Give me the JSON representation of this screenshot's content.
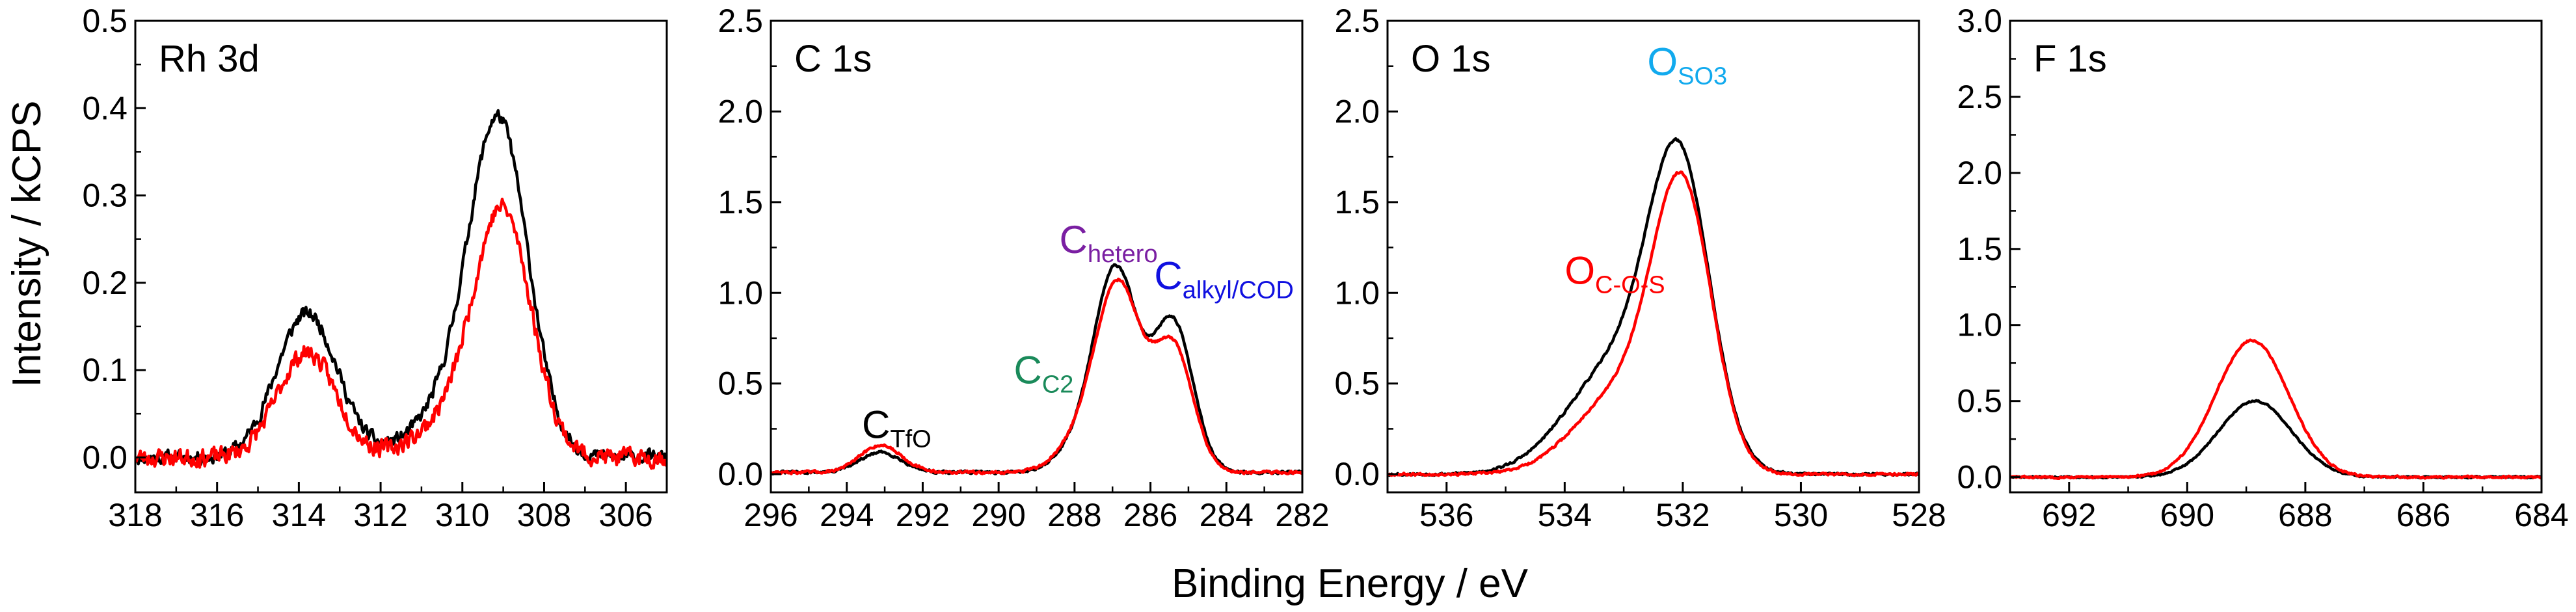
{
  "chart_data": {
    "type": "line",
    "xlabel": "Binding Energy / eV",
    "ylabel": "Intensity / kCPS",
    "series_colors": {
      "black": "#000000",
      "red": "#ff0000"
    },
    "panels": [
      {
        "title": "Rh 3d",
        "xlim": [
          318,
          305
        ],
        "ylim": [
          -0.04,
          0.5
        ],
        "xticks": [
          318,
          316,
          314,
          312,
          310,
          308,
          306
        ],
        "xtick_labels": [
          "318",
          "316",
          "314",
          "312",
          "310",
          "308",
          "306"
        ],
        "yticks": [
          0,
          0.1,
          0.2,
          0.3,
          0.4,
          0.5
        ],
        "ytick_labels": [
          "0.0",
          "0.1",
          "0.2",
          "0.3",
          "0.4",
          "0.5"
        ],
        "annotations": [],
        "series": [
          {
            "name": "black",
            "color": "#000000",
            "peaks": [
              {
                "c": 313.8,
                "a": 0.165,
                "w": 0.75
              },
              {
                "c": 309.1,
                "a": 0.37,
                "w": 0.72
              },
              {
                "c": 310.3,
                "a": 0.05,
                "w": 0.9
              }
            ],
            "baseline": 0.0,
            "noise": 0.012,
            "seed": 11
          },
          {
            "name": "red",
            "color": "#ff0000",
            "peaks": [
              {
                "c": 313.8,
                "a": 0.12,
                "w": 0.72
              },
              {
                "c": 309.0,
                "a": 0.27,
                "w": 0.7
              },
              {
                "c": 310.2,
                "a": 0.04,
                "w": 0.9
              }
            ],
            "baseline": 0.0,
            "noise": 0.016,
            "seed": 23
          }
        ]
      },
      {
        "title": "C 1s",
        "xlim": [
          296,
          282
        ],
        "ylim": [
          -0.1,
          2.5
        ],
        "xticks": [
          296,
          294,
          292,
          290,
          288,
          286,
          284,
          282
        ],
        "xtick_labels": [
          "296",
          "294",
          "292",
          "290",
          "288",
          "286",
          "284",
          "282"
        ],
        "yticks": [
          0,
          0.5,
          1.0,
          1.5,
          2.0,
          2.5
        ],
        "ytick_labels": [
          "0.0",
          "0.5",
          "1.0",
          "1.5",
          "2.0",
          "2.5"
        ],
        "annotations": [
          {
            "main": "C",
            "sub": "TfO",
            "color": "#000000",
            "x": 293.6,
            "y": 0.2
          },
          {
            "main": "C",
            "sub": "C2",
            "color": "#1a8a5a",
            "x": 289.6,
            "y": 0.5
          },
          {
            "main": "C",
            "sub": "hetero",
            "color": "#7a1fa2",
            "x": 288.4,
            "y": 1.22
          },
          {
            "main": "C",
            "sub": "alkyl/COD",
            "color": "#1010e0",
            "x": 285.9,
            "y": 1.02
          }
        ],
        "series": [
          {
            "name": "black",
            "color": "#000000",
            "peaks": [
              {
                "c": 293.1,
                "a": 0.11,
                "w": 0.55
              },
              {
                "c": 286.9,
                "a": 1.1,
                "w": 0.58
              },
              {
                "c": 285.4,
                "a": 0.82,
                "w": 0.52
              },
              {
                "c": 287.9,
                "a": 0.12,
                "w": 0.6
              }
            ],
            "baseline": 0.01,
            "noise": 0.012,
            "seed": 31
          },
          {
            "name": "red",
            "color": "#ff0000",
            "peaks": [
              {
                "c": 293.1,
                "a": 0.15,
                "w": 0.55
              },
              {
                "c": 286.85,
                "a": 1.02,
                "w": 0.6
              },
              {
                "c": 285.4,
                "a": 0.68,
                "w": 0.52
              },
              {
                "c": 287.9,
                "a": 0.14,
                "w": 0.6
              }
            ],
            "baseline": 0.01,
            "noise": 0.012,
            "seed": 47
          }
        ]
      },
      {
        "title": "O 1s",
        "xlim": [
          537,
          528
        ],
        "ylim": [
          -0.1,
          2.5
        ],
        "xticks": [
          536,
          534,
          532,
          530,
          528
        ],
        "xtick_labels": [
          "536",
          "534",
          "532",
          "530",
          "528"
        ],
        "yticks": [
          0,
          0.5,
          1.0,
          1.5,
          2.0,
          2.5
        ],
        "ytick_labels": [
          "0.0",
          "0.5",
          "1.0",
          "1.5",
          "2.0",
          "2.5"
        ],
        "annotations": [
          {
            "main": "O",
            "sub": "SO3",
            "color": "#12aaee",
            "x": 532.6,
            "y": 2.2
          },
          {
            "main": "O",
            "sub": "C-O-S",
            "color": "#ff0000",
            "x": 534.0,
            "y": 1.05
          }
        ],
        "series": [
          {
            "name": "black",
            "color": "#000000",
            "peaks": [
              {
                "c": 532.05,
                "a": 1.55,
                "w": 0.52
              },
              {
                "c": 533.1,
                "a": 0.6,
                "w": 0.85
              }
            ],
            "baseline": 0.0,
            "noise": 0.01,
            "seed": 53
          },
          {
            "name": "red",
            "color": "#ff0000",
            "peaks": [
              {
                "c": 532.0,
                "a": 1.45,
                "w": 0.5
              },
              {
                "c": 533.0,
                "a": 0.45,
                "w": 0.8
              }
            ],
            "baseline": 0.0,
            "noise": 0.01,
            "seed": 67
          }
        ]
      },
      {
        "title": "F 1s",
        "xlim": [
          693,
          684
        ],
        "ylim": [
          -0.1,
          3.0
        ],
        "xticks": [
          692,
          690,
          688,
          686,
          684
        ],
        "xtick_labels": [
          "692",
          "690",
          "688",
          "686",
          "684"
        ],
        "yticks": [
          0,
          0.5,
          1.0,
          1.5,
          2.0,
          2.5,
          3.0
        ],
        "ytick_labels": [
          "0.0",
          "0.5",
          "1.0",
          "1.5",
          "2.0",
          "2.5",
          "3.0"
        ],
        "annotations": [],
        "series": [
          {
            "name": "black",
            "color": "#000000",
            "peaks": [
              {
                "c": 688.85,
                "a": 0.5,
                "w": 0.62
              }
            ],
            "baseline": 0.0,
            "noise": 0.008,
            "seed": 71
          },
          {
            "name": "red",
            "color": "#ff0000",
            "peaks": [
              {
                "c": 688.9,
                "a": 0.9,
                "w": 0.62
              }
            ],
            "baseline": 0.0,
            "noise": 0.01,
            "seed": 83
          }
        ]
      }
    ]
  }
}
